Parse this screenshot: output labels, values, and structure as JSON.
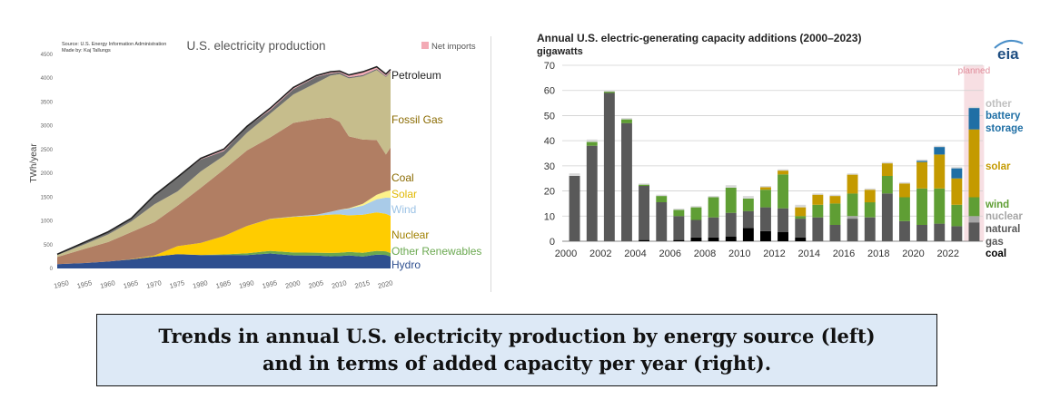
{
  "charts": [
    {
      "type": "area",
      "title": "U.S. electricity production",
      "source_line_1": "Source: U.S. Energy Information Administration",
      "source_line_2": "Made by: Kaj Tallungs",
      "ylabel": "TWh/year",
      "ylim": [
        0,
        4500
      ],
      "yticks": [
        0,
        500,
        1000,
        1500,
        2000,
        2500,
        3000,
        3500,
        4000,
        4500
      ],
      "xlim": [
        1949,
        2021
      ],
      "xticks": [
        1950,
        1955,
        1960,
        1965,
        1970,
        1975,
        1980,
        1985,
        1990,
        1995,
        2000,
        2005,
        2010,
        2015,
        2020
      ],
      "legend_net_imports": "Net imports",
      "x": [
        1949,
        1955,
        1960,
        1965,
        1970,
        1975,
        1980,
        1985,
        1990,
        1995,
        2000,
        2005,
        2008,
        2010,
        2012,
        2015,
        2018,
        2020,
        2021
      ],
      "series": [
        {
          "name": "Hydro",
          "color": "#2e4f8f",
          "values": [
            90,
            115,
            145,
            190,
            250,
            300,
            280,
            285,
            280,
            315,
            275,
            270,
            255,
            260,
            275,
            250,
            290,
            285,
            250
          ]
        },
        {
          "name": "Other Renewables",
          "color": "#6aa84f",
          "values": [
            0,
            0,
            0,
            0,
            0,
            0,
            5,
            10,
            40,
            55,
            60,
            62,
            72,
            72,
            72,
            80,
            80,
            75,
            75
          ]
        },
        {
          "name": "Nuclear",
          "color": "#ffcc00",
          "values": [
            0,
            0,
            0,
            5,
            20,
            170,
            250,
            385,
            575,
            670,
            750,
            780,
            805,
            805,
            770,
            800,
            810,
            790,
            780
          ]
        },
        {
          "name": "Wind",
          "color": "#a9cbe8",
          "values": [
            0,
            0,
            0,
            0,
            0,
            0,
            0,
            0,
            0,
            5,
            5,
            18,
            55,
            95,
            140,
            190,
            275,
            340,
            380
          ]
        },
        {
          "name": "Solar",
          "color": "#fdf28a",
          "values": [
            0,
            0,
            0,
            0,
            0,
            0,
            0,
            0,
            0,
            0,
            0,
            0,
            2,
            3,
            10,
            40,
            95,
            130,
            160
          ]
        },
        {
          "name": "Coal",
          "color": "#b17e63",
          "values": [
            150,
            300,
            410,
            570,
            705,
            850,
            1160,
            1400,
            1590,
            1710,
            1970,
            2015,
            1985,
            1850,
            1510,
            1350,
            1150,
            775,
            900
          ]
        },
        {
          "name": "Fossil Gas",
          "color": "#c6bd8c",
          "values": [
            40,
            95,
            160,
            225,
            375,
            300,
            345,
            290,
            370,
            500,
            600,
            760,
            880,
            1000,
            1220,
            1330,
            1470,
            1630,
            1580
          ]
        },
        {
          "name": "Petroleum",
          "color": "#6e6e6e",
          "values": [
            20,
            40,
            50,
            60,
            185,
            290,
            250,
            100,
            125,
            75,
            110,
            125,
            45,
            37,
            25,
            28,
            25,
            17,
            20
          ]
        },
        {
          "name": "Net imports",
          "color": "#f3aab5",
          "values": [
            0,
            5,
            5,
            5,
            5,
            10,
            25,
            40,
            10,
            40,
            35,
            25,
            35,
            30,
            45,
            65,
            45,
            45,
            40
          ]
        }
      ],
      "labels": {
        "petroleum": "Petroleum",
        "fossil_gas": "Fossil Gas",
        "coal": "Coal",
        "solar": "Solar",
        "wind": "Wind",
        "nuclear": "Nuclear",
        "other_renewables": "Other Renewables",
        "hydro": "Hydro"
      },
      "label_colors": {
        "petroleum": "#222222",
        "fossil_gas": "#8a6a00",
        "coal": "#8a6a00",
        "solar": "#e0b800",
        "wind": "#9cc3e6",
        "nuclear": "#a08000",
        "other_renewables": "#6aa84f",
        "hydro": "#2e4f8f"
      }
    },
    {
      "type": "bar",
      "stacked": true,
      "title": "Annual U.S. electric-generating capacity additions (2000–2023)",
      "ylabel": "gigawatts",
      "ylim": [
        0,
        70
      ],
      "yticks": [
        0,
        10,
        20,
        30,
        40,
        50,
        60,
        70
      ],
      "xtick_labels": [
        "2000",
        "2002",
        "2004",
        "2006",
        "2008",
        "2010",
        "2012",
        "2014",
        "2016",
        "2018",
        "2020",
        "2022"
      ],
      "planned_label": "planned",
      "logo": "eia",
      "categories": [
        "2000",
        "2001",
        "2002",
        "2003",
        "2004",
        "2005",
        "2006",
        "2007",
        "2008",
        "2009",
        "2010",
        "2011",
        "2012",
        "2013",
        "2014",
        "2015",
        "2016",
        "2017",
        "2018",
        "2019",
        "2020",
        "2021",
        "2022",
        "2023"
      ],
      "series": [
        {
          "name": "coal",
          "color": "#000000",
          "values": [
            0,
            0,
            0,
            0,
            0.5,
            0,
            0.5,
            1.5,
            1.5,
            1.8,
            5.3,
            4,
            3.6,
            1.5,
            0,
            0,
            0,
            0,
            0,
            0,
            0,
            0,
            0,
            0
          ]
        },
        {
          "name": "natural gas",
          "color": "#595959",
          "values": [
            26,
            38,
            59,
            47,
            21.5,
            15.5,
            9.5,
            7,
            8,
            9.5,
            6.7,
            9.5,
            9.5,
            7.5,
            9.5,
            6.5,
            9,
            9.5,
            19,
            8,
            6.5,
            7,
            6,
            7.5
          ]
        },
        {
          "name": "nuclear",
          "color": "#a6a6a6",
          "values": [
            0,
            0,
            0,
            0,
            0,
            0,
            0,
            0,
            0,
            0,
            0,
            0,
            0,
            0,
            0,
            0,
            1,
            0,
            0,
            0,
            0,
            0,
            0,
            2.5
          ]
        },
        {
          "name": "wind",
          "color": "#5f9e34",
          "values": [
            0,
            1.5,
            0.5,
            1.5,
            0.5,
            2.5,
            2.5,
            5,
            8,
            10,
            5,
            7,
            13.5,
            1,
            5,
            8.5,
            9,
            6,
            7,
            9.5,
            14.5,
            14,
            8.5,
            7.5
          ]
        },
        {
          "name": "solar",
          "color": "#c49a00",
          "values": [
            0,
            0,
            0,
            0,
            0,
            0,
            0,
            0,
            0,
            0,
            0,
            1,
            1.5,
            3.5,
            4,
            3,
            7.5,
            5,
            5,
            5.5,
            10.5,
            13.5,
            10.5,
            27
          ]
        },
        {
          "name": "battery storage",
          "color": "#1f6fa5",
          "values": [
            0,
            0,
            0,
            0,
            0,
            0,
            0,
            0,
            0,
            0,
            0,
            0,
            0,
            0,
            0,
            0,
            0,
            0,
            0,
            0,
            0.5,
            3,
            4,
            8.5
          ]
        },
        {
          "name": "other",
          "color": "#d9d9d9",
          "values": [
            1,
            1,
            0.5,
            0.5,
            0.5,
            0.5,
            0.5,
            0.5,
            0.5,
            1,
            1,
            0.5,
            0.5,
            1,
            0.5,
            0.5,
            0.5,
            0.5,
            0.5,
            0.5,
            0.5,
            0.5,
            0.5,
            0.5
          ]
        }
      ],
      "legend_colors": {
        "other": "#bfbfbf",
        "battery_storage": "#1f6fa5",
        "solar": "#c49a00",
        "wind": "#5f9e34",
        "nuclear": "#a6a6a6",
        "natural_gas": "#595959",
        "coal": "#000000"
      },
      "legend": {
        "other": "other",
        "battery_1": "battery",
        "battery_2": "storage",
        "solar": "solar",
        "wind": "wind",
        "nuclear": "nuclear",
        "gas_1": "natural",
        "gas_2": "gas",
        "coal": "coal"
      }
    }
  ],
  "caption": {
    "line1": "Trends in annual U.S. electricity production by energy source (left)",
    "line2": "and in terms of added capacity per year (right)."
  }
}
